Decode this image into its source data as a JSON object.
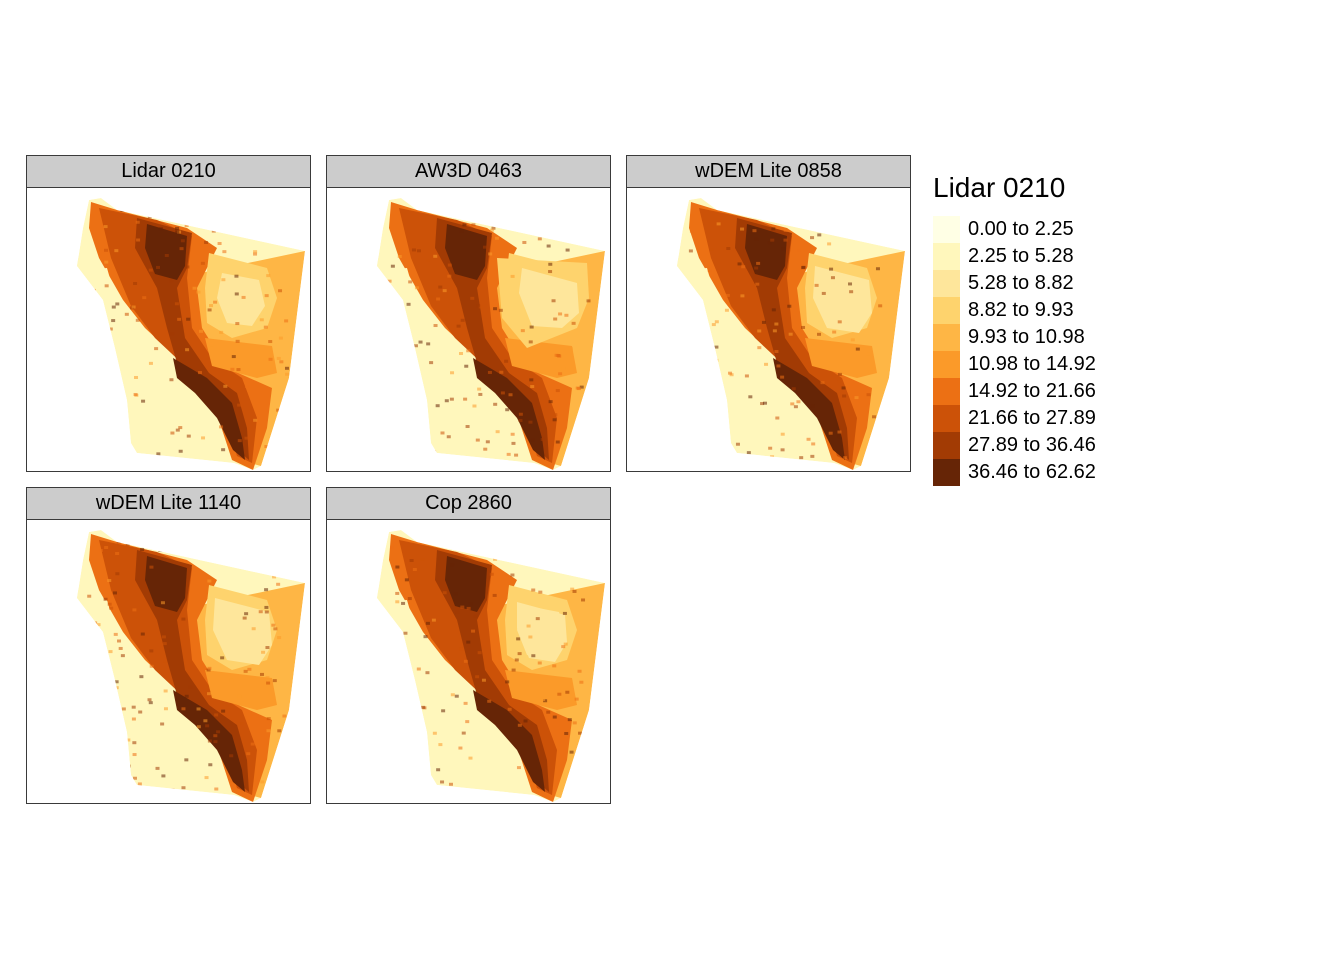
{
  "panels": [
    {
      "title": "Lidar 0210",
      "style": "lidar"
    },
    {
      "title": "AW3D 0463",
      "style": "aw3d"
    },
    {
      "title": "wDEM Lite 0858",
      "style": "wdem"
    },
    {
      "title": "wDEM Lite 1140",
      "style": "wdem"
    },
    {
      "title": "Cop 2860",
      "style": "cop"
    }
  ],
  "legend": {
    "title": "Lidar 0210",
    "classes": [
      {
        "label": "0.00 to 2.25",
        "color": "#ffffe5"
      },
      {
        "label": "2.25 to 5.28",
        "color": "#fff7bc"
      },
      {
        "label": "5.28 to 8.82",
        "color": "#fee69b"
      },
      {
        "label": "8.82 to 9.93",
        "color": "#fed36d"
      },
      {
        "label": "9.93 to 10.98",
        "color": "#feb645"
      },
      {
        "label": "10.98 to 14.92",
        "color": "#fb9a29"
      },
      {
        "label": "14.92 to 21.66",
        "color": "#ec7014"
      },
      {
        "label": "21.66 to 27.89",
        "color": "#cc5208"
      },
      {
        "label": "27.89 to 36.46",
        "color": "#a23b04"
      },
      {
        "label": "36.46 to 62.62",
        "color": "#662506"
      }
    ]
  }
}
